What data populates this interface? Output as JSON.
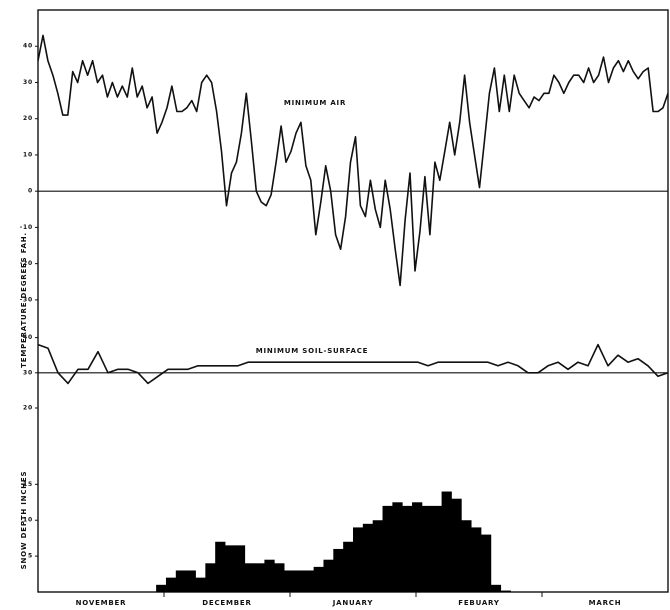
{
  "chart_data": [
    {
      "type": "line",
      "label": "MINIMUM AIR",
      "ylabel": "TEMPERATURE   DEGREES   FAH.",
      "ylim": [
        -35,
        50
      ],
      "yticks": [
        40,
        30,
        20,
        10,
        0,
        -10,
        -20,
        -30
      ],
      "hline": 0,
      "series": [
        {
          "color": "#111111",
          "values": [
            36,
            43,
            36,
            32,
            27,
            21,
            21,
            33,
            30,
            36,
            32,
            36,
            30,
            32,
            26,
            30,
            26,
            29,
            26,
            34,
            26,
            29,
            23,
            26,
            16,
            19,
            23,
            29,
            22,
            22,
            23,
            25,
            22,
            30,
            32,
            30,
            22,
            11,
            -4,
            5,
            8,
            16,
            27,
            14,
            0,
            -3,
            -4,
            -1,
            8,
            18,
            8,
            11,
            16,
            19,
            7,
            3,
            -12,
            -3,
            7,
            0,
            -12,
            -16,
            -7,
            8,
            15,
            -4,
            -7,
            3,
            -5,
            -10,
            3,
            -5,
            -16,
            -26,
            -8,
            5,
            -22,
            -11,
            4,
            -12,
            8,
            3,
            11,
            19,
            10,
            19,
            32,
            19,
            10,
            1,
            14,
            27,
            34,
            22,
            32,
            22,
            32,
            27,
            25,
            23,
            26,
            25,
            27,
            27,
            32,
            30,
            27,
            30,
            32,
            32,
            30,
            34,
            30,
            32,
            37,
            30,
            34,
            36,
            33,
            36,
            33,
            31,
            33,
            34,
            22,
            22,
            23,
            27
          ]
        }
      ]
    },
    {
      "type": "line",
      "label": "MINIMUM   SOIL-SURFACE",
      "ylim": [
        20,
        45
      ],
      "yticks": [
        40,
        30,
        20
      ],
      "hline": 30,
      "series": [
        {
          "color": "#111111",
          "values": [
            38,
            37,
            30,
            27,
            31,
            31,
            36,
            30,
            31,
            31,
            30,
            27,
            29,
            31,
            31,
            31,
            32,
            32,
            32,
            32,
            32,
            33,
            33,
            33,
            33,
            33,
            33,
            33,
            33,
            33,
            33,
            33,
            33,
            33,
            33,
            33,
            33,
            33,
            33,
            32,
            33,
            33,
            33,
            33,
            33,
            33,
            32,
            33,
            32,
            30,
            30,
            32,
            33,
            31,
            33,
            32,
            38,
            32,
            35,
            33,
            34,
            32,
            29,
            30
          ]
        }
      ]
    },
    {
      "type": "bar",
      "ylabel": "SNOW  DEPTH  INCHES",
      "ylim": [
        0,
        17
      ],
      "yticks": [
        15,
        10,
        5
      ],
      "color": "#000000",
      "values": [
        0,
        0,
        0,
        0,
        0,
        0,
        0,
        0,
        0,
        0,
        0,
        0,
        1,
        2,
        3,
        3,
        2,
        4,
        7,
        6.5,
        6.5,
        4,
        4,
        4.5,
        4,
        3,
        3,
        3,
        3.5,
        4.5,
        6,
        7,
        9,
        9.5,
        10,
        12,
        12.5,
        12,
        12.5,
        12,
        12,
        14,
        13,
        10,
        9,
        8,
        1,
        0.2,
        0,
        0,
        0,
        0,
        0,
        0,
        0,
        0,
        0,
        0,
        0,
        0,
        0,
        0,
        0,
        0
      ],
      "xlabels": [
        "NOVEMBER",
        "DECEMBER",
        "JANUARY",
        "FEBUARY",
        "MARCH"
      ]
    }
  ]
}
